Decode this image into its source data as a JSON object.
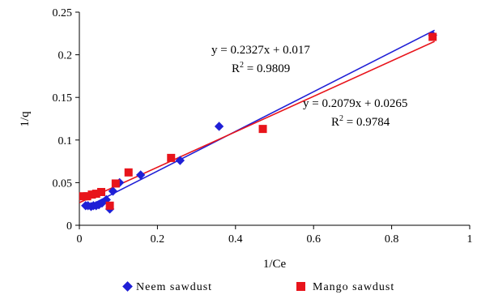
{
  "chart_data": {
    "type": "scatter",
    "xlabel": "1/Ce",
    "ylabel": "1/q",
    "xlim": [
      0,
      1
    ],
    "ylim": [
      0,
      0.25
    ],
    "x_ticks": [
      "0",
      "0.2",
      "0.4",
      "0.6",
      "0.8",
      "1"
    ],
    "y_ticks": [
      "0",
      "0.05",
      "0.1",
      "0.15",
      "0.2",
      "0.25"
    ],
    "grid": false,
    "legend_position": "bottom",
    "series": [
      {
        "name": "Neem sawdust",
        "marker": "diamond",
        "color": "#1f1fd6",
        "points": [
          [
            0.016,
            0.023
          ],
          [
            0.022,
            0.023
          ],
          [
            0.03,
            0.022
          ],
          [
            0.036,
            0.023
          ],
          [
            0.043,
            0.023
          ],
          [
            0.05,
            0.024
          ],
          [
            0.058,
            0.026
          ],
          [
            0.069,
            0.03
          ],
          [
            0.078,
            0.019
          ],
          [
            0.086,
            0.04
          ],
          [
            0.103,
            0.05
          ],
          [
            0.157,
            0.059
          ],
          [
            0.258,
            0.076
          ],
          [
            0.358,
            0.116
          ],
          [
            0.905,
            0.223
          ]
        ],
        "fit": {
          "slope": 0.2327,
          "intercept": 0.017,
          "x_range": [
            0.015,
            0.91
          ]
        },
        "equation": "y = 0.2327x + 0.017",
        "r2_label": "R",
        "r2_sup": "2",
        "r2_value": " = 0.9809"
      },
      {
        "name": "Mango sawdust",
        "marker": "square",
        "color": "#e8141b",
        "points": [
          [
            0.01,
            0.034
          ],
          [
            0.02,
            0.034
          ],
          [
            0.032,
            0.036
          ],
          [
            0.043,
            0.037
          ],
          [
            0.056,
            0.039
          ],
          [
            0.078,
            0.023
          ],
          [
            0.093,
            0.049
          ],
          [
            0.126,
            0.062
          ],
          [
            0.235,
            0.079
          ],
          [
            0.47,
            0.113
          ],
          [
            0.905,
            0.221
          ]
        ],
        "fit": {
          "slope": 0.2079,
          "intercept": 0.0265,
          "x_range": [
            0.0,
            0.91
          ]
        },
        "equation": "y = 0.2079x + 0.0265",
        "r2_label": "R",
        "r2_sup": "2",
        "r2_value": " = 0.9784"
      }
    ]
  }
}
